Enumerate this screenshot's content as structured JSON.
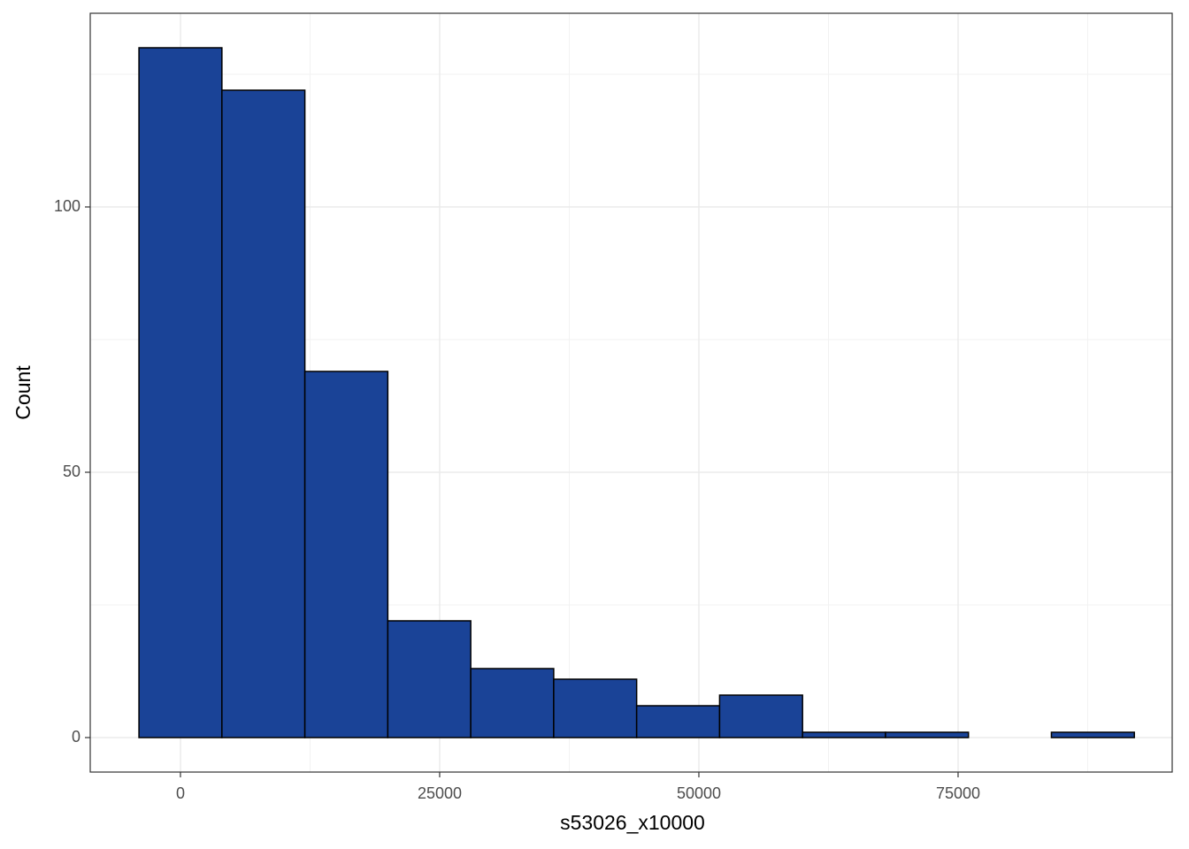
{
  "chart_data": {
    "type": "histogram",
    "x_label": "s53026_x10000",
    "y_label": "Count",
    "bins": [
      -4000,
      4000,
      12000,
      20000,
      28000,
      36000,
      44000,
      52000,
      60000,
      68000,
      76000,
      84000,
      92000
    ],
    "values": [
      130,
      122,
      69,
      22,
      13,
      11,
      6,
      8,
      1,
      1,
      0,
      1
    ],
    "color": "#1a4397",
    "edge_color": "#000000",
    "xlim": [
      -8700,
      95650
    ],
    "ylim": [
      -6.5,
      136.5
    ],
    "xticks": [
      0,
      25000,
      50000,
      75000
    ],
    "yticks": [
      0,
      50,
      100
    ],
    "grid": true
  }
}
